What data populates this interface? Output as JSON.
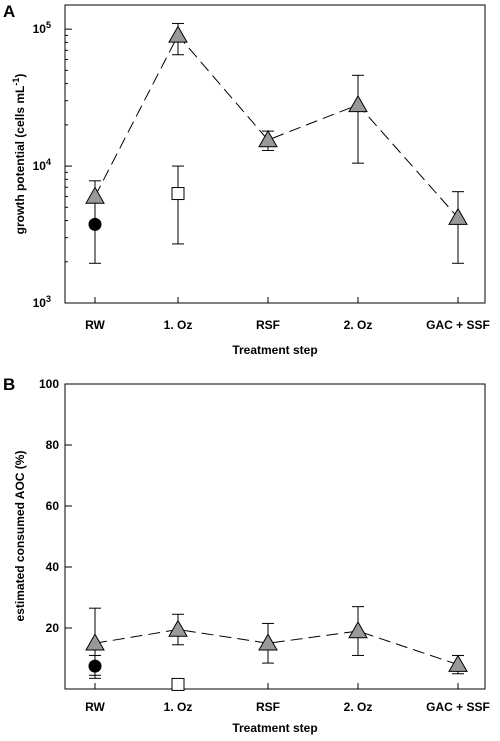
{
  "chart_data": [
    {
      "panel": "A",
      "type": "line",
      "ylabel_main": "growth potential (cells mL",
      "ylabel_sup": "-1",
      "ylabel_close": ")",
      "xlabel": "Treatment step",
      "categories": [
        "RW",
        "1. Oz",
        "RSF",
        "2. Oz",
        "GAC + SSF"
      ],
      "yscale": "log",
      "ylim": [
        1000,
        150000
      ],
      "yticks": [
        {
          "value": 1000,
          "base": "10",
          "exp": "3"
        },
        {
          "value": 10000,
          "base": "10",
          "exp": "4"
        },
        {
          "value": 100000,
          "base": "10",
          "exp": "5"
        }
      ],
      "series": [
        {
          "marker": "triangle",
          "color": "#999999",
          "line": "dashed",
          "points": [
            {
              "x": "RW",
              "y": 6000,
              "err_low": 1950,
              "err_high": 7800
            },
            {
              "x": "1. Oz",
              "y": 90000,
              "err_low": 65000,
              "err_high": 110000
            },
            {
              "x": "RSF",
              "y": 15500,
              "err_low": 13000,
              "err_high": 18000
            },
            {
              "x": "2. Oz",
              "y": 28000,
              "err_low": 10500,
              "err_high": 46000
            },
            {
              "x": "GAC + SSF",
              "y": 4200,
              "err_low": 1950,
              "err_high": 6500
            }
          ]
        },
        {
          "marker": "circle",
          "color": "#000000",
          "line": "none",
          "points": [
            {
              "x": "RW",
              "y": 3750,
              "err_low": null,
              "err_high": null
            }
          ]
        },
        {
          "marker": "square",
          "color": "#ffffff",
          "line": "none",
          "points": [
            {
              "x": "1. Oz",
              "y": 6300,
              "err_low": 2700,
              "err_high": 10000
            }
          ]
        }
      ]
    },
    {
      "panel": "B",
      "type": "line",
      "ylabel_main": "estimated consumed AOC (%)",
      "xlabel": "Treatment step",
      "categories": [
        "RW",
        "1. Oz",
        "RSF",
        "2. Oz",
        "GAC + SSF"
      ],
      "yscale": "linear",
      "ylim": [
        0,
        100
      ],
      "yticks": [
        {
          "value": 20,
          "label": "20"
        },
        {
          "value": 40,
          "label": "40"
        },
        {
          "value": 60,
          "label": "60"
        },
        {
          "value": 80,
          "label": "80"
        },
        {
          "value": 100,
          "label": "100"
        }
      ],
      "series": [
        {
          "marker": "triangle",
          "color": "#999999",
          "line": "dashed",
          "points": [
            {
              "x": "RW",
              "y": 15,
              "err_low": 4.5,
              "err_high": 26.5
            },
            {
              "x": "1. Oz",
              "y": 19.5,
              "err_low": 14.5,
              "err_high": 24.5
            },
            {
              "x": "RSF",
              "y": 15,
              "err_low": 8.5,
              "err_high": 21.5
            },
            {
              "x": "2. Oz",
              "y": 19,
              "err_low": 11,
              "err_high": 27
            },
            {
              "x": "GAC + SSF",
              "y": 8,
              "err_low": 5,
              "err_high": 11
            }
          ]
        },
        {
          "marker": "circle",
          "color": "#000000",
          "line": "none",
          "points": [
            {
              "x": "RW",
              "y": 7.5,
              "err_low": 3.5,
              "err_high": 11
            }
          ]
        },
        {
          "marker": "square",
          "color": "#ffffff",
          "line": "none",
          "points": [
            {
              "x": "1. Oz",
              "y": 1.5,
              "err_low": null,
              "err_high": null
            }
          ]
        }
      ]
    }
  ]
}
